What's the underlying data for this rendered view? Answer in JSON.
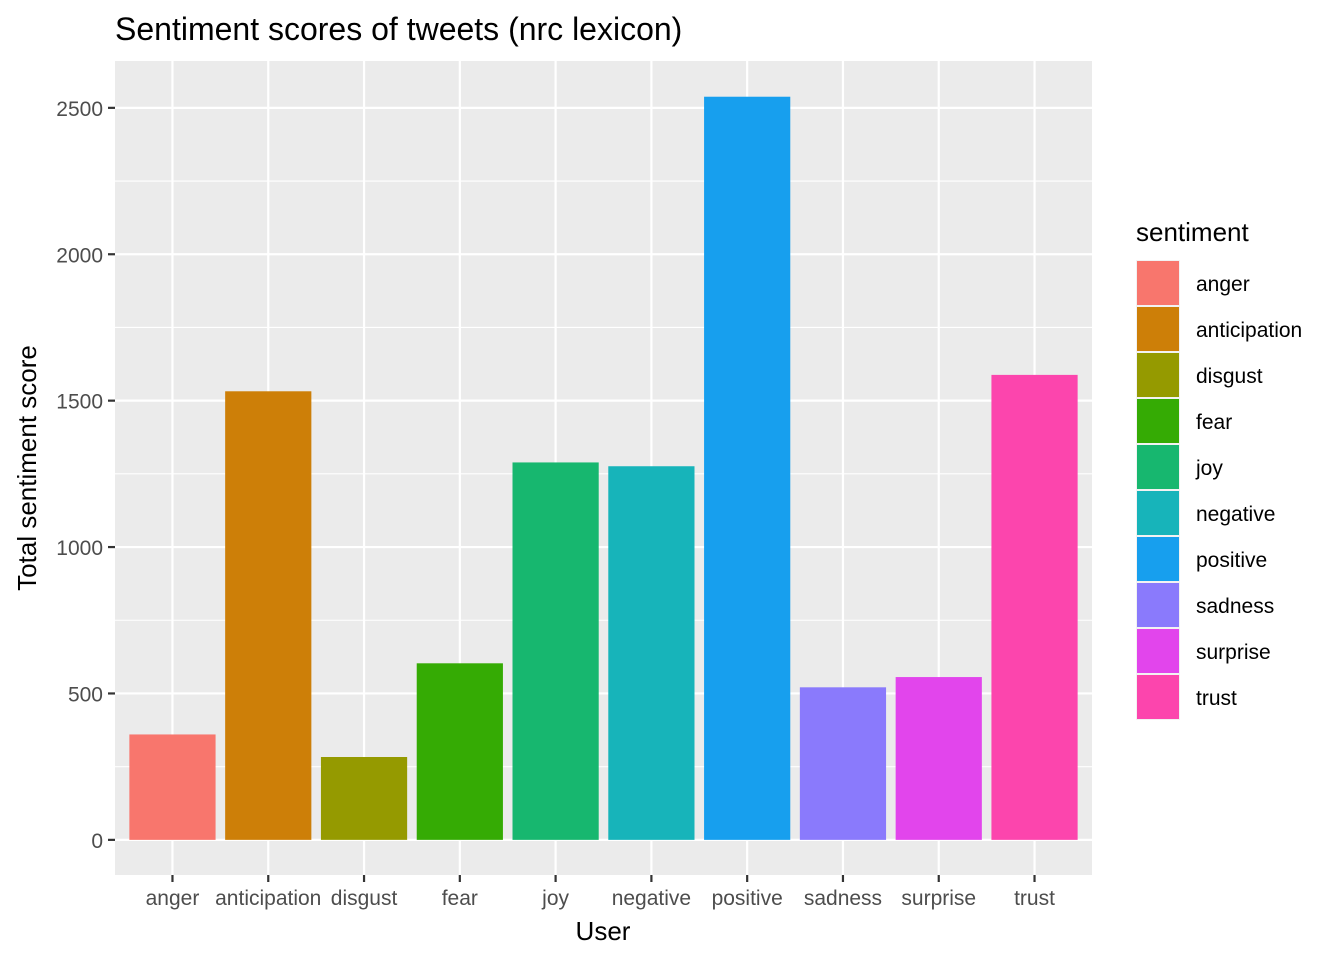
{
  "chart_data": {
    "type": "bar",
    "title": "Sentiment scores of tweets (nrc lexicon)",
    "xlabel": "User",
    "ylabel": "Total sentiment score",
    "ylim": [
      -120,
      2660
    ],
    "yticks": [
      0,
      500,
      1000,
      1500,
      2000,
      2500
    ],
    "grid": true,
    "legend": {
      "title": "sentiment",
      "position": "right"
    },
    "categories": [
      "anger",
      "anticipation",
      "disgust",
      "fear",
      "joy",
      "negative",
      "positive",
      "sadness",
      "surprise",
      "trust"
    ],
    "values": [
      360,
      1532,
      283,
      603,
      1289,
      1276,
      2538,
      521,
      556,
      1588
    ],
    "colors": [
      "#F8766D",
      "#CD7F08",
      "#959A00",
      "#35AB04",
      "#17B76F",
      "#17B4BA",
      "#179FEE",
      "#8A7AFC",
      "#E245EC",
      "#FC45AD"
    ]
  }
}
